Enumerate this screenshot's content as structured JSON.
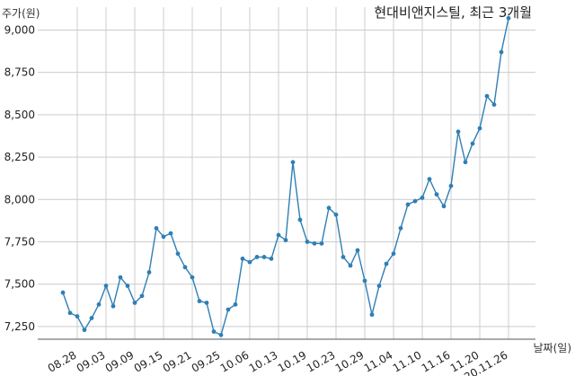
{
  "chart_data": {
    "type": "line",
    "title": "현대비앤지스틸, 최근 3개월",
    "ylabel": "주가(원)",
    "xlabel": "날짜(일)",
    "ylim": [
      7175,
      9135
    ],
    "grid": true,
    "y_ticks": [
      7250,
      7500,
      7750,
      8000,
      8250,
      8500,
      8750,
      9000
    ],
    "y_tick_labels": [
      "7,250",
      "7,500",
      "7,750",
      "8,000",
      "8,250",
      "8,500",
      "8,750",
      "9,000"
    ],
    "x_ticks": [
      {
        "index": 2,
        "label": "08.28"
      },
      {
        "index": 6,
        "label": "09.03"
      },
      {
        "index": 10,
        "label": "09.09"
      },
      {
        "index": 14,
        "label": "09.15"
      },
      {
        "index": 18,
        "label": "09.21"
      },
      {
        "index": 22,
        "label": "09.25"
      },
      {
        "index": 26,
        "label": "10.06"
      },
      {
        "index": 30,
        "label": "10.13"
      },
      {
        "index": 34,
        "label": "10.19"
      },
      {
        "index": 38,
        "label": "10.23"
      },
      {
        "index": 42,
        "label": "10.29"
      },
      {
        "index": 46,
        "label": "11.04"
      },
      {
        "index": 50,
        "label": "11.10"
      },
      {
        "index": 54,
        "label": "11.16"
      },
      {
        "index": 58,
        "label": "11.20"
      },
      {
        "index": 62,
        "label": "20.11.26"
      }
    ],
    "series": [
      {
        "color": "#2f7fb5",
        "values": [
          7450,
          7330,
          7310,
          7230,
          7300,
          7380,
          7490,
          7370,
          7540,
          7490,
          7390,
          7430,
          7570,
          7830,
          7780,
          7800,
          7680,
          7600,
          7540,
          7400,
          7390,
          7220,
          7200,
          7350,
          7380,
          7650,
          7630,
          7660,
          7660,
          7650,
          7790,
          7760,
          8220,
          7880,
          7750,
          7740,
          7740,
          7950,
          7910,
          7660,
          7610,
          7700,
          7520,
          7320,
          7490,
          7620,
          7680,
          7830,
          7970,
          7990,
          8010,
          8120,
          8030,
          7960,
          8080,
          8400,
          8220,
          8330,
          8420,
          8610,
          8560,
          8870,
          9070
        ]
      }
    ]
  }
}
